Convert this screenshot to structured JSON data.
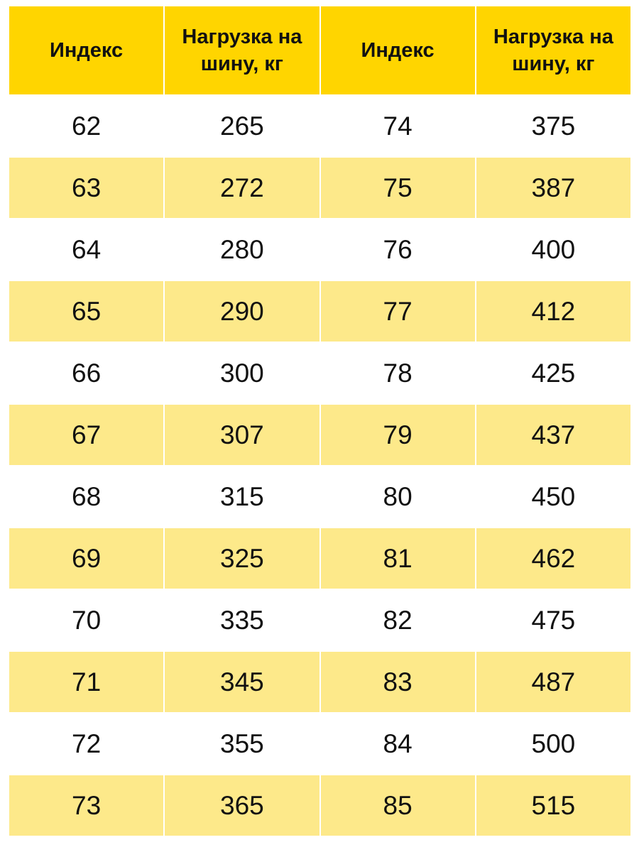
{
  "table": {
    "header": [
      "Индекс",
      "Нагрузка на шину, кг",
      "Индекс",
      "Нагрузка на шину, кг"
    ],
    "rows": [
      [
        62,
        265,
        74,
        375
      ],
      [
        63,
        272,
        75,
        387
      ],
      [
        64,
        280,
        76,
        400
      ],
      [
        65,
        290,
        77,
        412
      ],
      [
        66,
        300,
        78,
        425
      ],
      [
        67,
        307,
        79,
        437
      ],
      [
        68,
        315,
        80,
        450
      ],
      [
        69,
        325,
        81,
        462
      ],
      [
        70,
        335,
        82,
        475
      ],
      [
        71,
        345,
        83,
        487
      ],
      [
        72,
        355,
        84,
        500
      ],
      [
        73,
        365,
        85,
        515
      ]
    ]
  }
}
